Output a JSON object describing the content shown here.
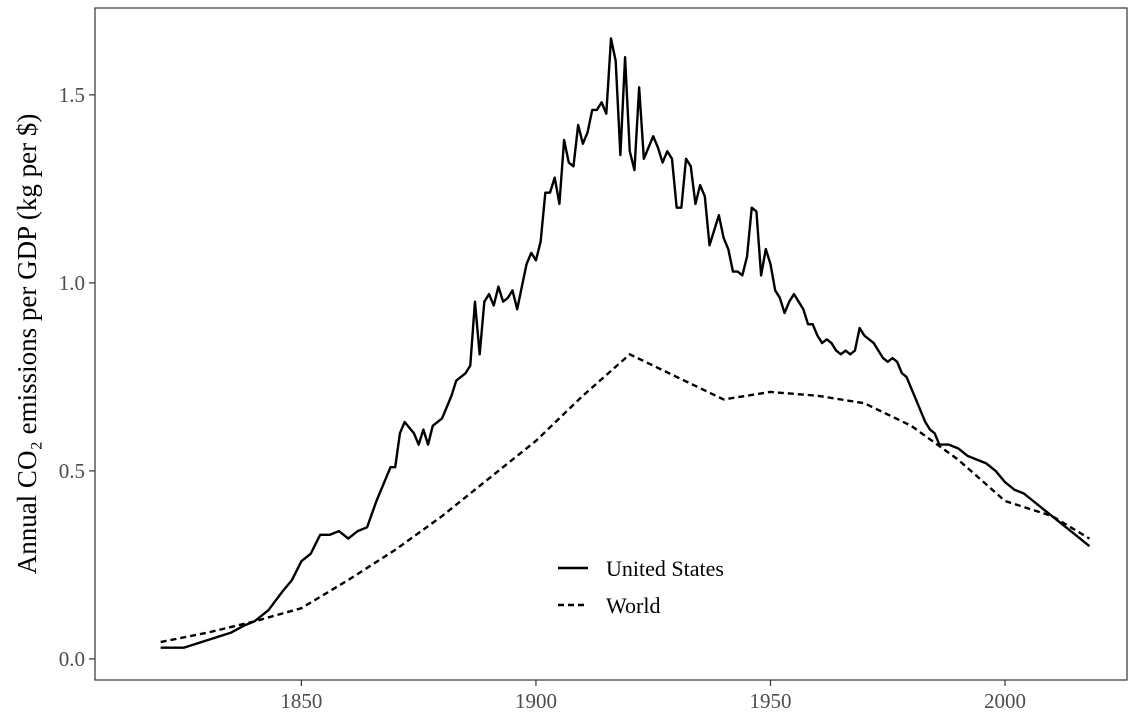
{
  "chart_data": {
    "type": "line",
    "ylabel": "Annual CO₂ emissions per GDP (kg per $)",
    "xlim": [
      1806,
      2026
    ],
    "xticks": [
      1850,
      1900,
      1950,
      2000
    ],
    "ylim": [
      -0.056,
      1.731
    ],
    "yticks": [
      {
        "value": 0,
        "label": "0.0"
      },
      0.5,
      {
        "value": 1,
        "label": "1.0"
      },
      1.5
    ],
    "legend": "bottom",
    "series": [
      {
        "name": "United States",
        "color": "#000000",
        "dash": "solid",
        "x": [
          1820,
          1825,
          1830,
          1835,
          1838,
          1840,
          1843,
          1846,
          1848,
          1850,
          1852,
          1854,
          1856,
          1858,
          1860,
          1862,
          1864,
          1866,
          1868,
          1869,
          1870,
          1871,
          1872,
          1874,
          1875,
          1876,
          1877,
          1878,
          1880,
          1882,
          1883,
          1885,
          1886,
          1887,
          1888,
          1889,
          1890,
          1891,
          1892,
          1893,
          1894,
          1895,
          1896,
          1897,
          1898,
          1899,
          1900,
          1901,
          1902,
          1903,
          1904,
          1905,
          1906,
          1907,
          1908,
          1909,
          1910,
          1911,
          1912,
          1913,
          1914,
          1915,
          1916,
          1917,
          1918,
          1919,
          1920,
          1921,
          1922,
          1923,
          1924,
          1925,
          1926,
          1927,
          1928,
          1929,
          1930,
          1931,
          1932,
          1933,
          1934,
          1935,
          1936,
          1937,
          1938,
          1939,
          1940,
          1941,
          1942,
          1943,
          1944,
          1945,
          1946,
          1947,
          1948,
          1949,
          1950,
          1951,
          1952,
          1953,
          1954,
          1955,
          1956,
          1957,
          1958,
          1959,
          1960,
          1961,
          1962,
          1963,
          1964,
          1965,
          1966,
          1967,
          1968,
          1969,
          1970,
          1971,
          1972,
          1973,
          1974,
          1975,
          1976,
          1977,
          1978,
          1979,
          1980,
          1981,
          1982,
          1983,
          1984,
          1985,
          1986,
          1987,
          1988,
          1990,
          1992,
          1994,
          1996,
          1998,
          2000,
          2002,
          2004,
          2006,
          2008,
          2010,
          2012,
          2014,
          2016,
          2018
        ],
        "values": [
          0.03,
          0.03,
          0.05,
          0.07,
          0.09,
          0.1,
          0.13,
          0.18,
          0.21,
          0.26,
          0.28,
          0.33,
          0.33,
          0.34,
          0.32,
          0.34,
          0.35,
          0.42,
          0.48,
          0.51,
          0.51,
          0.6,
          0.63,
          0.6,
          0.57,
          0.61,
          0.57,
          0.62,
          0.64,
          0.7,
          0.74,
          0.76,
          0.78,
          0.95,
          0.81,
          0.95,
          0.97,
          0.94,
          0.99,
          0.95,
          0.96,
          0.98,
          0.93,
          0.99,
          1.05,
          1.08,
          1.06,
          1.11,
          1.24,
          1.24,
          1.28,
          1.21,
          1.38,
          1.32,
          1.31,
          1.42,
          1.37,
          1.4,
          1.46,
          1.46,
          1.48,
          1.45,
          1.65,
          1.59,
          1.34,
          1.6,
          1.35,
          1.3,
          1.52,
          1.33,
          1.36,
          1.39,
          1.36,
          1.32,
          1.35,
          1.33,
          1.2,
          1.2,
          1.33,
          1.31,
          1.21,
          1.26,
          1.23,
          1.1,
          1.14,
          1.18,
          1.12,
          1.09,
          1.03,
          1.03,
          1.02,
          1.07,
          1.2,
          1.19,
          1.02,
          1.09,
          1.05,
          0.98,
          0.96,
          0.92,
          0.95,
          0.97,
          0.95,
          0.93,
          0.89,
          0.89,
          0.86,
          0.84,
          0.85,
          0.84,
          0.82,
          0.81,
          0.82,
          0.81,
          0.82,
          0.88,
          0.86,
          0.85,
          0.84,
          0.82,
          0.8,
          0.79,
          0.8,
          0.79,
          0.76,
          0.75,
          0.72,
          0.69,
          0.66,
          0.63,
          0.61,
          0.6,
          0.57,
          0.57,
          0.57,
          0.56,
          0.54,
          0.53,
          0.52,
          0.5,
          0.47,
          0.45,
          0.44,
          0.42,
          0.4,
          0.38,
          0.36,
          0.34,
          0.32,
          0.3
        ]
      },
      {
        "name": "World",
        "color": "#000000",
        "dash": "dashed",
        "x": [
          1820,
          1830,
          1840,
          1850,
          1860,
          1870,
          1880,
          1890,
          1900,
          1910,
          1920,
          1930,
          1940,
          1950,
          1960,
          1970,
          1980,
          1990,
          2000,
          2010,
          2018
        ],
        "values": [
          0.045,
          0.07,
          0.1,
          0.135,
          0.21,
          0.29,
          0.38,
          0.48,
          0.58,
          0.7,
          0.81,
          0.75,
          0.69,
          0.71,
          0.7,
          0.68,
          0.62,
          0.53,
          0.42,
          0.38,
          0.32
        ]
      }
    ]
  }
}
